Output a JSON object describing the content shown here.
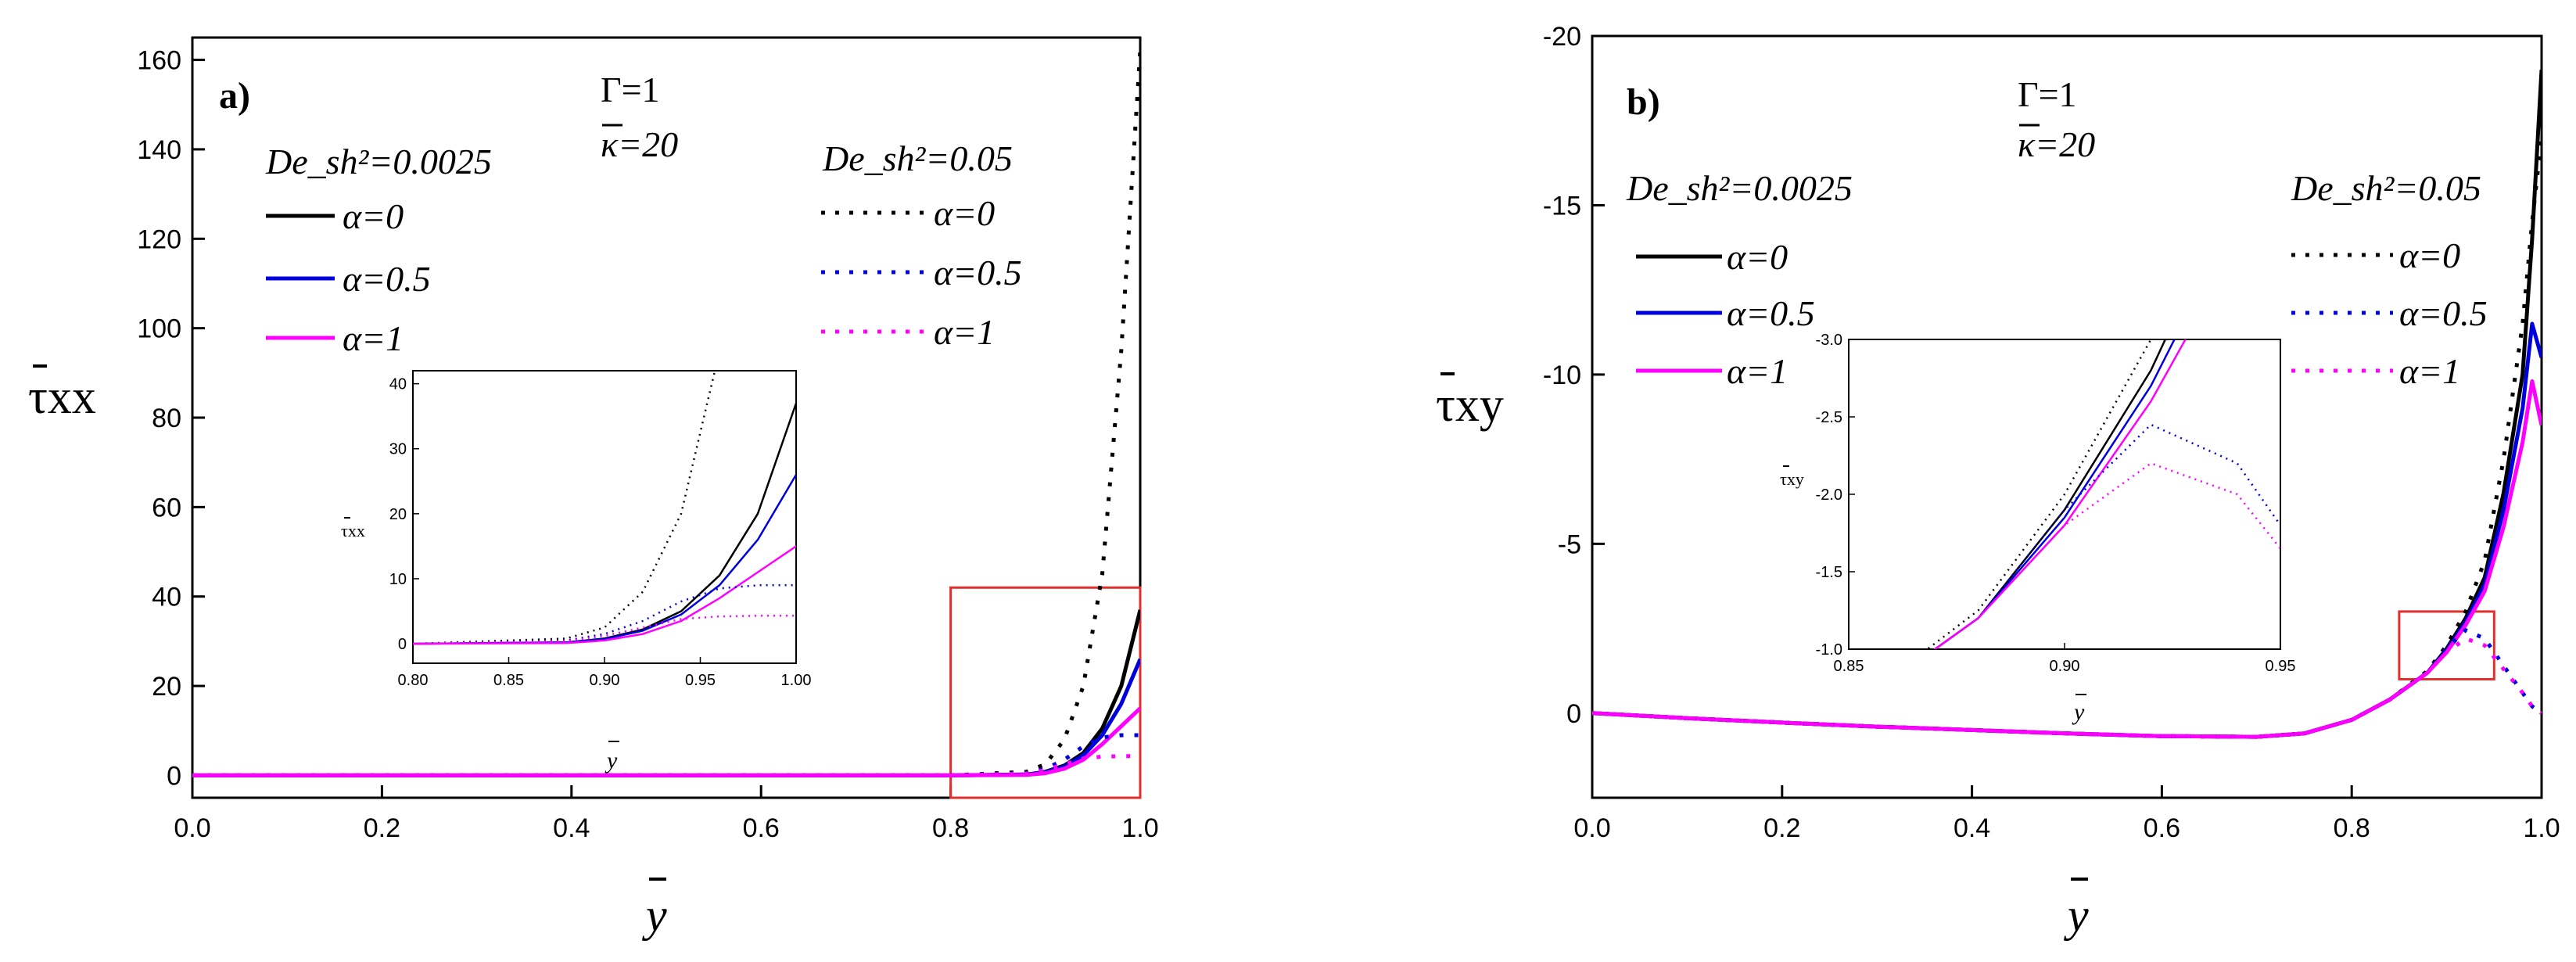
{
  "chart_data": [
    {
      "type": "line",
      "panel": "a)",
      "annotations": [
        "Γ=1",
        "κ=20"
      ],
      "ylabel": "τxx",
      "xlabel": "y",
      "xlim": [
        0,
        1
      ],
      "ylim": [
        -5,
        165
      ],
      "xticks": [
        "0.0",
        "0.2",
        "0.4",
        "0.6",
        "0.8",
        "1.0"
      ],
      "yticks": [
        "0",
        "20",
        "40",
        "60",
        "80",
        "100",
        "120",
        "140",
        "160"
      ],
      "legend_groups": [
        {
          "label": "De_sh²=0.0025",
          "style": "solid",
          "entries": [
            "α=0",
            "α=0.5",
            "α=1"
          ]
        },
        {
          "label": "De_sh²=0.05",
          "style": "dotted",
          "entries": [
            "α=0",
            "α=0.5",
            "α=1"
          ]
        }
      ],
      "series_colors": [
        "#000000",
        "#0000dd",
        "#ff00ff"
      ],
      "x": [
        0,
        0.8,
        0.88,
        0.9,
        0.92,
        0.94,
        0.96,
        0.98,
        1.0
      ],
      "series": [
        {
          "name": "De_sh²=0.0025, α=0",
          "style": "solid",
          "values": [
            0,
            0,
            0.2,
            0.8,
            2.2,
            5.0,
            10.5,
            20.0,
            37.0
          ]
        },
        {
          "name": "De_sh²=0.0025, α=0.5",
          "style": "solid",
          "values": [
            0,
            0,
            0.2,
            0.7,
            2.0,
            4.5,
            9.0,
            16.0,
            26.0
          ]
        },
        {
          "name": "De_sh²=0.0025, α=1",
          "style": "solid",
          "values": [
            0,
            0,
            0.1,
            0.5,
            1.5,
            3.5,
            7.0,
            11.0,
            15.0
          ]
        },
        {
          "name": "De_sh²=0.05, α=0",
          "style": "dotted",
          "values": [
            0,
            0,
            0.8,
            2.5,
            8.0,
            20.0,
            45.0,
            95.0,
            162.0
          ]
        },
        {
          "name": "De_sh²=0.05, α=0.5",
          "style": "dotted",
          "values": [
            0,
            0,
            0.5,
            1.5,
            3.5,
            6.5,
            8.5,
            9.0,
            9.0
          ]
        },
        {
          "name": "De_sh²=0.05, α=1",
          "style": "dotted",
          "values": [
            0,
            0,
            0.4,
            1.2,
            2.5,
            3.8,
            4.2,
            4.3,
            4.3
          ]
        }
      ],
      "zoom_box": {
        "x": [
          0.8,
          1.0
        ],
        "y": [
          -5,
          42
        ]
      },
      "inset": {
        "xlim": [
          0.8,
          1.0
        ],
        "ylim": [
          -3,
          42
        ],
        "xticks": [
          "0.80",
          "0.85",
          "0.90",
          "0.95",
          "1.00"
        ],
        "yticks": [
          "0",
          "10",
          "20",
          "30",
          "40"
        ],
        "ylabel": "τxx",
        "xlabel": "y"
      }
    },
    {
      "type": "line",
      "panel": "b)",
      "annotations": [
        "Γ=1",
        "κ=20"
      ],
      "ylabel": "τxy",
      "xlabel": "y",
      "xlim": [
        0,
        1
      ],
      "ylim": [
        2.5,
        -20
      ],
      "xticks": [
        "0.0",
        "0.2",
        "0.4",
        "0.6",
        "0.8",
        "1.0"
      ],
      "yticks": [
        "0",
        "-5",
        "-10",
        "-15",
        "-20"
      ],
      "legend_groups": [
        {
          "label": "De_sh²=0.0025",
          "style": "solid",
          "entries": [
            "α=0",
            "α=0.5",
            "α=1"
          ]
        },
        {
          "label": "De_sh²=0.05",
          "style": "dotted",
          "entries": [
            "α=0",
            "α=0.5",
            "α=1"
          ]
        }
      ],
      "series_colors": [
        "#000000",
        "#0000dd",
        "#ff00ff"
      ],
      "x": [
        0,
        0.1,
        0.2,
        0.3,
        0.4,
        0.5,
        0.6,
        0.7,
        0.75,
        0.8,
        0.84,
        0.88,
        0.9,
        0.92,
        0.94,
        0.96,
        0.98,
        0.99,
        1.0
      ],
      "series": [
        {
          "name": "De_sh²=0.0025, α=0",
          "style": "solid",
          "values": [
            0,
            0.15,
            0.28,
            0.4,
            0.5,
            0.6,
            0.68,
            0.7,
            0.6,
            0.2,
            -0.4,
            -1.2,
            -1.9,
            -2.8,
            -4.0,
            -6.5,
            -10.0,
            -14.0,
            -19.0
          ]
        },
        {
          "name": "De_sh²=0.0025, α=0.5",
          "style": "solid",
          "values": [
            0,
            0.15,
            0.28,
            0.4,
            0.5,
            0.6,
            0.68,
            0.7,
            0.6,
            0.2,
            -0.4,
            -1.2,
            -1.85,
            -2.7,
            -3.8,
            -6.0,
            -9.0,
            -11.5,
            -10.5
          ]
        },
        {
          "name": "De_sh²=0.0025, α=1",
          "style": "solid",
          "values": [
            0,
            0.15,
            0.28,
            0.4,
            0.5,
            0.6,
            0.68,
            0.7,
            0.6,
            0.2,
            -0.4,
            -1.2,
            -1.8,
            -2.6,
            -3.6,
            -5.5,
            -8.0,
            -9.8,
            -8.5
          ]
        },
        {
          "name": "De_sh²=0.05, α=0",
          "style": "dotted",
          "values": [
            0,
            0.15,
            0.28,
            0.4,
            0.5,
            0.6,
            0.68,
            0.7,
            0.6,
            0.2,
            -0.4,
            -1.25,
            -2.0,
            -3.0,
            -4.5,
            -7.5,
            -11.5,
            -14.5,
            -17.0
          ]
        },
        {
          "name": "De_sh²=0.05, α=0.5",
          "style": "dotted",
          "values": [
            0,
            0.15,
            0.28,
            0.4,
            0.5,
            0.6,
            0.68,
            0.7,
            0.6,
            0.2,
            -0.4,
            -1.2,
            -1.9,
            -2.45,
            -2.2,
            -1.4,
            -0.6,
            -0.2,
            0
          ]
        },
        {
          "name": "De_sh²=0.05, α=1",
          "style": "dotted",
          "values": [
            0,
            0.15,
            0.28,
            0.4,
            0.5,
            0.6,
            0.68,
            0.7,
            0.6,
            0.2,
            -0.4,
            -1.2,
            -1.8,
            -2.2,
            -2.0,
            -1.3,
            -0.6,
            -0.2,
            0
          ]
        }
      ],
      "zoom_box": {
        "x": [
          0.85,
          0.95
        ],
        "y": [
          -1,
          -3
        ]
      },
      "inset": {
        "xlim": [
          0.85,
          0.95
        ],
        "ylim": [
          -1.0,
          -3.0
        ],
        "xticks": [
          "0.85",
          "0.90",
          "0.95"
        ],
        "yticks": [
          "-1.0",
          "-1.5",
          "-2.0",
          "-2.5",
          "-3.0"
        ],
        "ylabel": "τxy",
        "xlabel": "y"
      }
    }
  ]
}
